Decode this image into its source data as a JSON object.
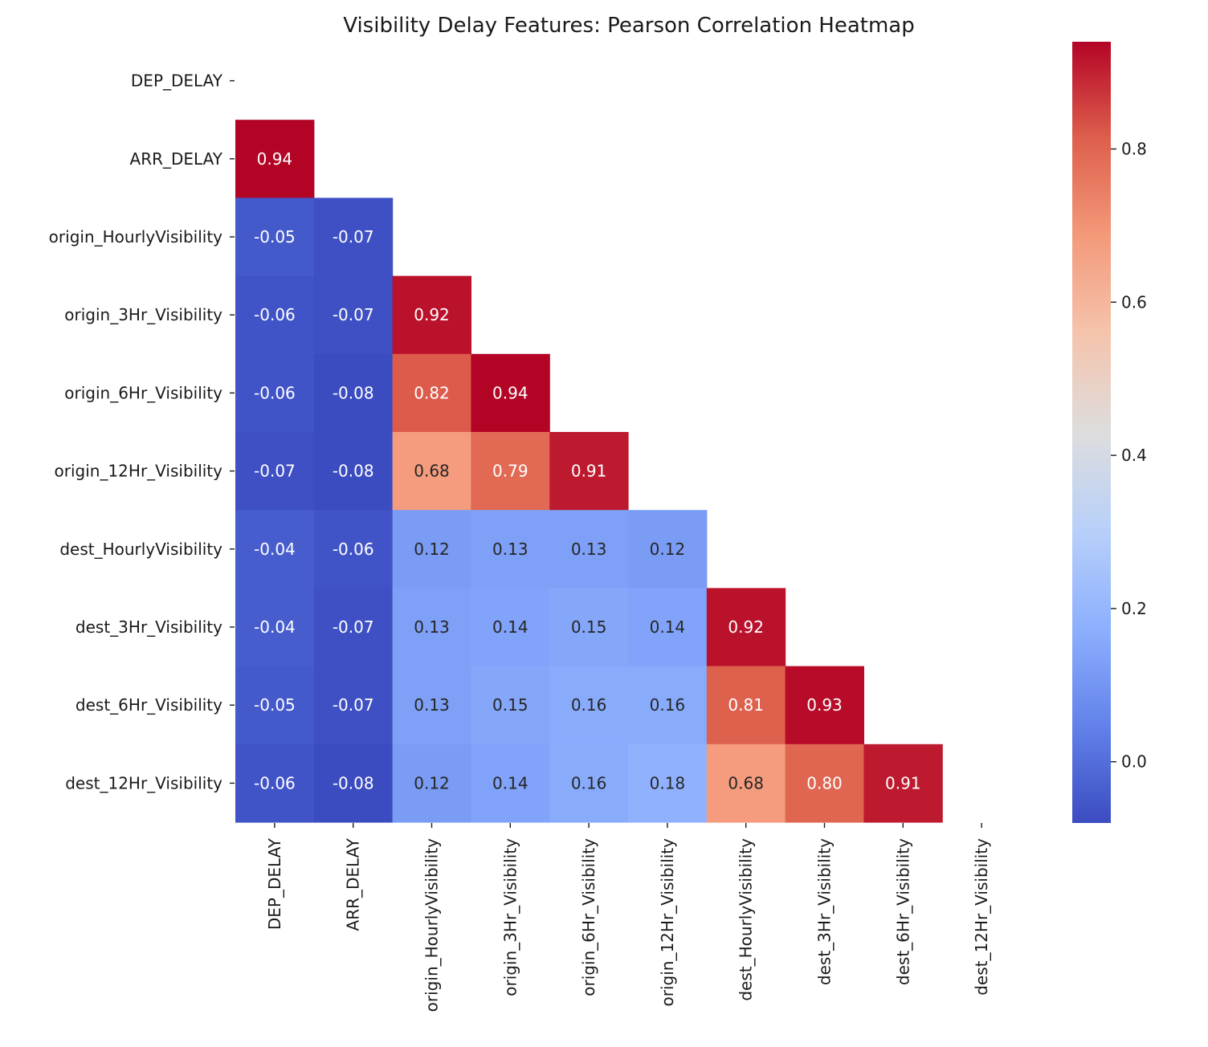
{
  "chart_data": {
    "type": "heatmap",
    "title": "Visibility Delay Features: Pearson Correlation Heatmap",
    "variables": [
      "DEP_DELAY",
      "ARR_DELAY",
      "origin_HourlyVisibility",
      "origin_3Hr_Visibility",
      "origin_6Hr_Visibility",
      "origin_12Hr_Visibility",
      "dest_HourlyVisibility",
      "dest_3Hr_Visibility",
      "dest_6Hr_Visibility",
      "dest_12Hr_Visibility"
    ],
    "mask": "upper-triangle including diagonal",
    "matrix_lower": [
      [],
      [
        0.94
      ],
      [
        -0.05,
        -0.07
      ],
      [
        -0.06,
        -0.07,
        0.92
      ],
      [
        -0.06,
        -0.08,
        0.82,
        0.94
      ],
      [
        -0.07,
        -0.08,
        0.68,
        0.79,
        0.91
      ],
      [
        -0.04,
        -0.06,
        0.12,
        0.13,
        0.13,
        0.12
      ],
      [
        -0.04,
        -0.07,
        0.13,
        0.14,
        0.15,
        0.14,
        0.92
      ],
      [
        -0.05,
        -0.07,
        0.13,
        0.15,
        0.16,
        0.16,
        0.81,
        0.93
      ],
      [
        -0.06,
        -0.08,
        0.12,
        0.14,
        0.16,
        0.18,
        0.68,
        0.8,
        0.91
      ]
    ],
    "colormap": "coolwarm",
    "colorbar": {
      "vmin": -0.08,
      "vmax": 0.94,
      "ticks": [
        0.0,
        0.2,
        0.4,
        0.6,
        0.8
      ],
      "tick_labels": [
        "0.0",
        "0.2",
        "0.4",
        "0.6",
        "0.8"
      ]
    },
    "annotation_format": "2 decimals",
    "grid": false
  }
}
